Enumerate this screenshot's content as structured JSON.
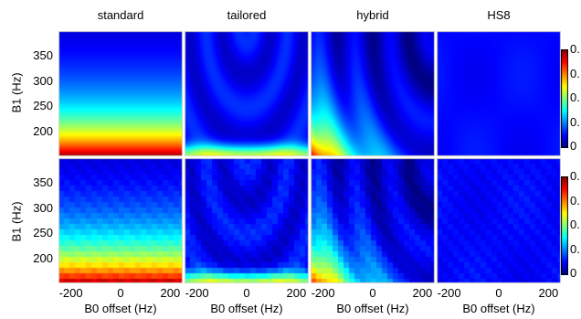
{
  "chart_data": {
    "type": "heatmap",
    "panel_titles": [
      "standard",
      "tailored",
      "hybrid",
      "HS8"
    ],
    "rows": [
      {
        "ylabel": "B1 (Hz)",
        "colorbar_ticks": [
          "0.",
          "0.",
          "0.",
          "0.",
          "0"
        ]
      },
      {
        "ylabel": "B1 (Hz)",
        "colorbar_ticks": [
          "0.",
          "0.",
          "0.",
          "0.",
          "0"
        ]
      }
    ],
    "xlabel": "B0 offset (Hz)",
    "x_ticks": [
      -200,
      0,
      200
    ],
    "y_ticks": [
      350,
      300,
      250,
      200
    ],
    "xlim": [
      -250,
      250
    ],
    "ylim": [
      150,
      400
    ],
    "colormap": "jet",
    "colors": {
      "border": "#d8d8c8"
    }
  }
}
